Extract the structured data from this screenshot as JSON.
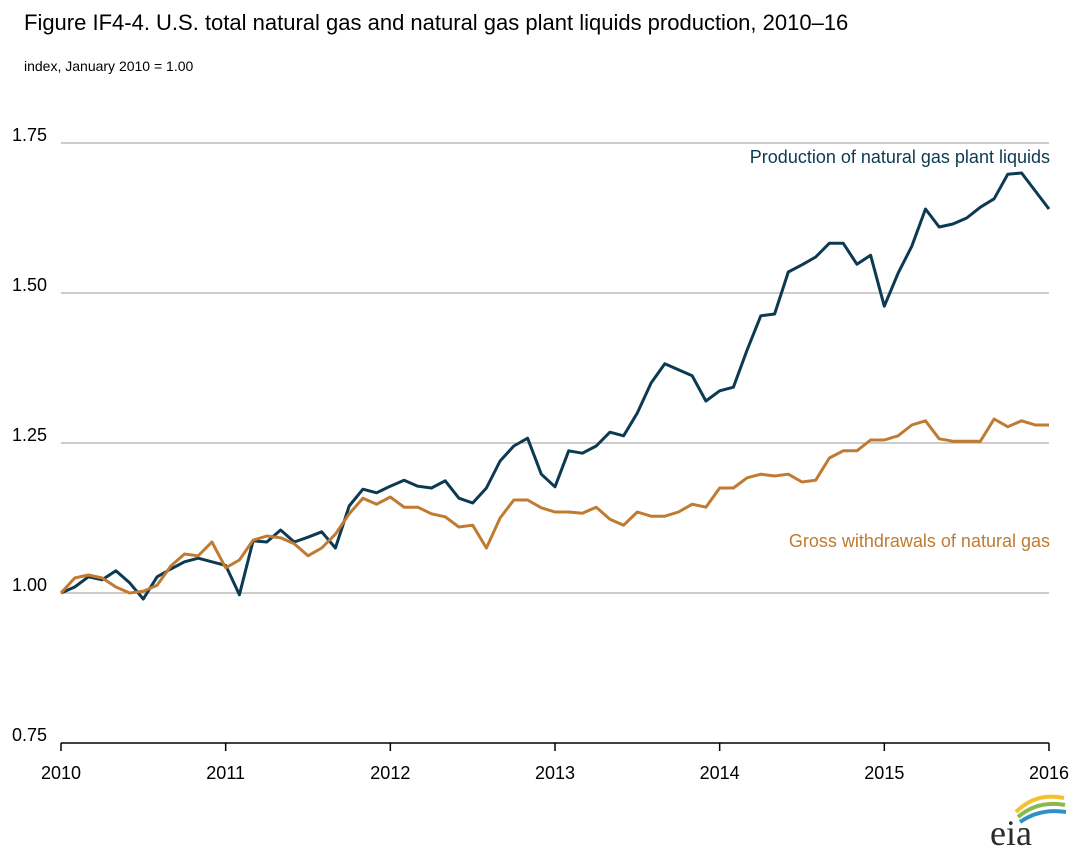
{
  "chart_data": {
    "type": "line",
    "title": "Figure IF4-4. U.S. total natural gas and natural gas plant liquids production, 2010–16",
    "subtitle": "index, January 2010 = 1.00",
    "xlabel": "",
    "ylabel": "",
    "ylim": [
      0.75,
      1.75
    ],
    "yticks": [
      "0.75",
      "1.00",
      "1.25",
      "1.50",
      "1.75"
    ],
    "xlim": [
      "2010-01",
      "2016-01"
    ],
    "xticks": [
      "2010",
      "2011",
      "2012",
      "2013",
      "2014",
      "2015",
      "2016"
    ],
    "grid": "horizontal",
    "colors": {
      "ngpl": "#0b3a52",
      "gas": "#c07a32",
      "grid": "#9a9a9a"
    },
    "series": [
      {
        "name": "Production of natural gas plant liquids",
        "key": "ngpl",
        "values": [
          1.0,
          1.01,
          1.027,
          1.022,
          1.037,
          1.017,
          0.99,
          1.027,
          1.04,
          1.052,
          1.058,
          1.052,
          1.046,
          0.997,
          1.087,
          1.085,
          1.105,
          1.085,
          1.093,
          1.102,
          1.075,
          1.145,
          1.173,
          1.167,
          1.178,
          1.188,
          1.178,
          1.175,
          1.187,
          1.158,
          1.15,
          1.175,
          1.22,
          1.245,
          1.258,
          1.198,
          1.177,
          1.237,
          1.233,
          1.245,
          1.268,
          1.262,
          1.3,
          1.35,
          1.382,
          1.372,
          1.362,
          1.32,
          1.337,
          1.343,
          1.405,
          1.462,
          1.465,
          1.535,
          1.547,
          1.56,
          1.583,
          1.583,
          1.548,
          1.563,
          1.478,
          1.533,
          1.578,
          1.64,
          1.61,
          1.615,
          1.625,
          1.643,
          1.657,
          1.698,
          1.7,
          1.67,
          1.64
        ]
      },
      {
        "name": "Gross withdrawals of natural gas",
        "key": "gas",
        "values": [
          1.0,
          1.025,
          1.03,
          1.025,
          1.01,
          1.0,
          1.003,
          1.013,
          1.045,
          1.065,
          1.062,
          1.085,
          1.042,
          1.055,
          1.088,
          1.095,
          1.092,
          1.082,
          1.062,
          1.075,
          1.098,
          1.132,
          1.158,
          1.148,
          1.16,
          1.143,
          1.143,
          1.132,
          1.127,
          1.11,
          1.113,
          1.075,
          1.125,
          1.155,
          1.155,
          1.142,
          1.135,
          1.135,
          1.133,
          1.143,
          1.123,
          1.113,
          1.135,
          1.128,
          1.128,
          1.135,
          1.148,
          1.143,
          1.175,
          1.175,
          1.192,
          1.198,
          1.195,
          1.198,
          1.185,
          1.188,
          1.225,
          1.237,
          1.237,
          1.255,
          1.255,
          1.262,
          1.28,
          1.287,
          1.257,
          1.253,
          1.253,
          1.253,
          1.29,
          1.277,
          1.287,
          1.28,
          1.28
        ]
      }
    ]
  },
  "logo": {
    "text": "eia"
  }
}
